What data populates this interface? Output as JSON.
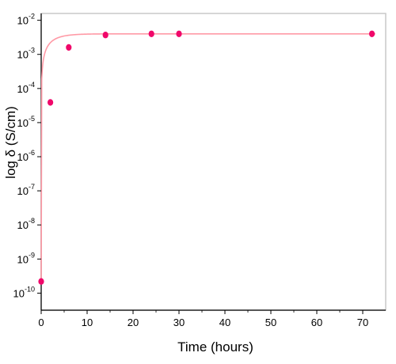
{
  "chart_data": {
    "type": "scatter",
    "title": "",
    "xlabel": "Time (hours)",
    "ylabel": "log δ (S/cm)",
    "xlim": [
      0,
      75
    ],
    "ylim_exponent": [
      -10.5,
      -1.8
    ],
    "y_scale": "log",
    "grid": false,
    "x_ticks": [
      {
        "value": 0,
        "label": "0"
      },
      {
        "value": 10,
        "label": "10"
      },
      {
        "value": 20,
        "label": "20"
      },
      {
        "value": 30,
        "label": "30"
      },
      {
        "value": 40,
        "label": "40"
      },
      {
        "value": 50,
        "label": "50"
      },
      {
        "value": 60,
        "label": "60"
      },
      {
        "value": 70,
        "label": "70"
      }
    ],
    "y_ticks": [
      {
        "exp": -2,
        "base": "10",
        "sup": "-2"
      },
      {
        "exp": -3,
        "base": "10",
        "sup": "-3"
      },
      {
        "exp": -4,
        "base": "10",
        "sup": "-4"
      },
      {
        "exp": -5,
        "base": "10",
        "sup": "-5"
      },
      {
        "exp": -6,
        "base": "10",
        "sup": "-6"
      },
      {
        "exp": -7,
        "base": "10",
        "sup": "-7"
      },
      {
        "exp": -8,
        "base": "10",
        "sup": "-8"
      },
      {
        "exp": -9,
        "base": "10",
        "sup": "-9"
      },
      {
        "exp": -10,
        "base": "10",
        "sup": "-10"
      }
    ],
    "points": [
      {
        "x": 0,
        "y": 2.2e-10
      },
      {
        "x": 2,
        "y": 3.9e-05
      },
      {
        "x": 6,
        "y": 0.0016
      },
      {
        "x": 14,
        "y": 0.0037
      },
      {
        "x": 24,
        "y": 0.004
      },
      {
        "x": 30,
        "y": 0.004
      },
      {
        "x": 72,
        "y": 0.004
      }
    ],
    "fit_curve": {
      "y_plateau": 0.004,
      "rate_constant": 0.4
    },
    "colors": {
      "points": "#f0086a",
      "curve": "#ff9aa6",
      "axes": "#000000",
      "frame": "#c8c8c8"
    }
  }
}
